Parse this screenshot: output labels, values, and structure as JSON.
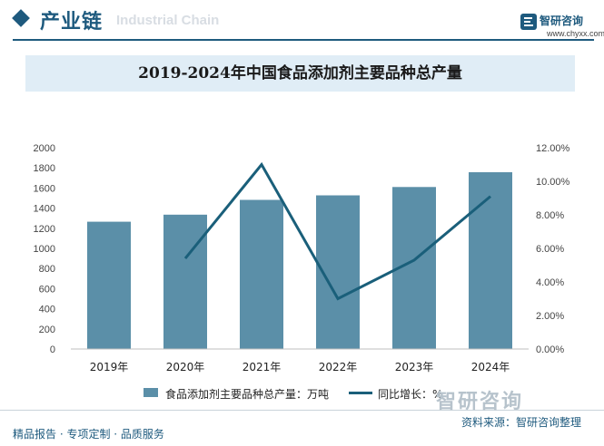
{
  "header": {
    "title": "产业链",
    "watermark": "Industrial Chain",
    "logo_name": "智研咨询",
    "logo_url": "www.chyxx.com"
  },
  "chart_data": {
    "type": "bar",
    "title": "2019-2024年中国食品添加剂主要品种总产量",
    "categories": [
      "2019年",
      "2020年",
      "2021年",
      "2022年",
      "2023年",
      "2024年"
    ],
    "series": [
      {
        "name": "食品添加剂主要品种总产量：万吨",
        "type": "bar",
        "axis": "left",
        "color": "#5b8fa8",
        "values": [
          1265,
          1335,
          1482,
          1527,
          1610,
          1757
        ]
      },
      {
        "name": "同比增长：%",
        "type": "line",
        "axis": "right",
        "color": "#1a5f7a",
        "values": [
          null,
          5.4,
          11.0,
          3.0,
          5.3,
          9.1
        ]
      }
    ],
    "ylim": [
      0,
      2000
    ],
    "yticks": [
      "0",
      "200",
      "400",
      "600",
      "800",
      "1000",
      "1200",
      "1400",
      "1600",
      "1800",
      "2000"
    ],
    "y2lim": [
      0,
      12
    ],
    "y2ticks": [
      "0.00%",
      "2.00%",
      "4.00%",
      "6.00%",
      "8.00%",
      "10.00%",
      "12.00%"
    ],
    "legend_position": "bottom"
  },
  "footer": {
    "left": "精品报告 · 专项定制 · 品质服务",
    "source": "资料来源：智研咨询整理",
    "brand": "智研咨询"
  }
}
